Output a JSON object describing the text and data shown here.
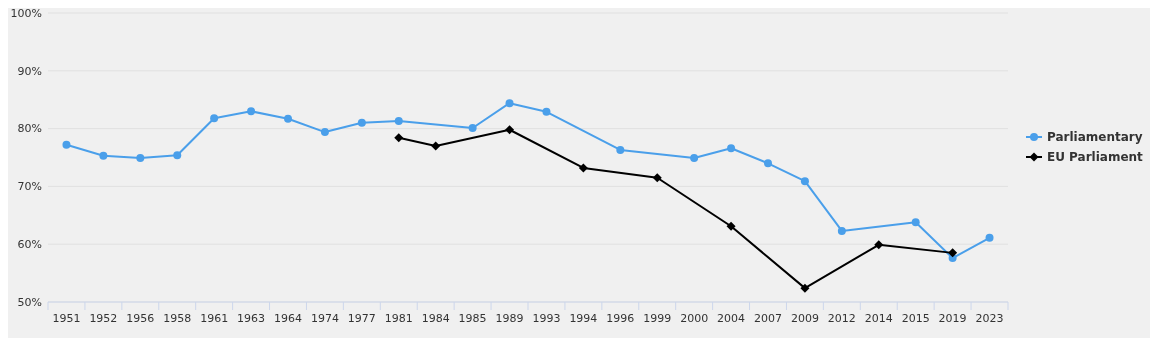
{
  "chart_data": {
    "type": "line",
    "categories": [
      "1951",
      "1952",
      "1956",
      "1958",
      "1961",
      "1963",
      "1964",
      "1974",
      "1977",
      "1981",
      "1984",
      "1985",
      "1989",
      "1993",
      "1994",
      "1996",
      "1999",
      "2000",
      "2004",
      "2007",
      "2009",
      "2012",
      "2014",
      "2015",
      "2019",
      "2023"
    ],
    "series": [
      {
        "name": "Parliamentary",
        "color": "#4a9fea",
        "marker": "circle",
        "values": [
          77.2,
          75.3,
          74.9,
          75.4,
          81.8,
          83.0,
          81.7,
          79.4,
          81.0,
          81.3,
          null,
          80.1,
          84.4,
          82.9,
          null,
          76.3,
          null,
          74.9,
          76.6,
          74.0,
          70.9,
          62.3,
          null,
          63.8,
          57.6,
          61.1
        ]
      },
      {
        "name": "EU Parliament",
        "color": "#000000",
        "marker": "diamond",
        "values": [
          null,
          null,
          null,
          null,
          null,
          null,
          null,
          null,
          null,
          78.4,
          77.0,
          null,
          79.8,
          null,
          73.2,
          null,
          71.5,
          null,
          63.1,
          null,
          52.4,
          null,
          59.9,
          null,
          58.5,
          null
        ]
      }
    ],
    "ylim": [
      50,
      100
    ],
    "yticks": [
      {
        "value": 50,
        "label": "50%"
      },
      {
        "value": 60,
        "label": "60%"
      },
      {
        "value": 70,
        "label": "70%"
      },
      {
        "value": 80,
        "label": "80%"
      },
      {
        "value": 90,
        "label": "90%"
      },
      {
        "value": 100,
        "label": "100%"
      }
    ],
    "grid": "y",
    "legend": "right"
  }
}
